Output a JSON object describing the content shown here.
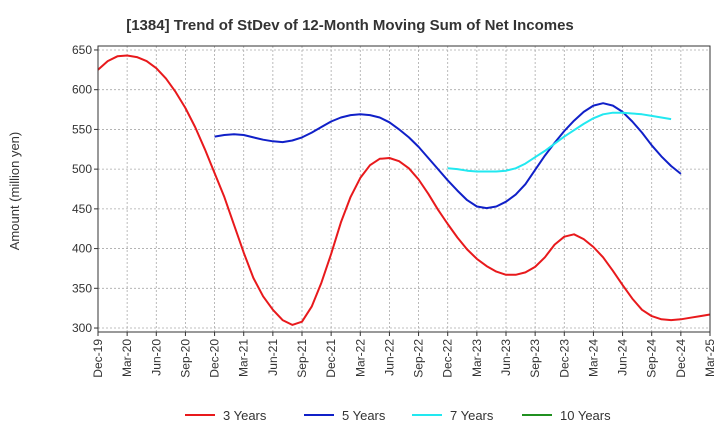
{
  "chart_data": {
    "type": "line",
    "title": "[1384]  Trend of StDev of 12-Month Moving Sum of Net Incomes",
    "ylabel": "Amount (million yen)",
    "xlabel": "",
    "ylim": [
      295,
      655
    ],
    "yticks": [
      300,
      350,
      400,
      450,
      500,
      550,
      600,
      650
    ],
    "x_tick_labels": [
      "Dec-19",
      "Mar-20",
      "Jun-20",
      "Sep-20",
      "Dec-20",
      "Mar-21",
      "Jun-21",
      "Sep-21",
      "Dec-21",
      "Mar-22",
      "Jun-22",
      "Sep-22",
      "Dec-22",
      "Mar-23",
      "Jun-23",
      "Sep-23",
      "Dec-23",
      "Mar-24",
      "Jun-24",
      "Sep-24",
      "Dec-24",
      "Mar-25"
    ],
    "x_unit": "month index (0 = Dec-19)",
    "grid": true,
    "legend_position": "bottom",
    "series": [
      {
        "name": "3 Years",
        "color": "#e8191c",
        "start": 0,
        "values": [
          625,
          636,
          642,
          643,
          641,
          636,
          627,
          614,
          597,
          577,
          553,
          525,
          495,
          465,
          430,
          395,
          363,
          340,
          323,
          310,
          304,
          308,
          327,
          357,
          393,
          433,
          465,
          489,
          505,
          513,
          514,
          510,
          501,
          487,
          469,
          449,
          431,
          414,
          399,
          387,
          378,
          371,
          367,
          367,
          370,
          377,
          389,
          405,
          415,
          418,
          412,
          402,
          389,
          372,
          354,
          337,
          323,
          315,
          311,
          310,
          311,
          313,
          315,
          317
        ]
      },
      {
        "name": "5 Years",
        "color": "#1020c8",
        "start": 12,
        "values": [
          541,
          543,
          544,
          543,
          540,
          537,
          535,
          534,
          536,
          540,
          546,
          553,
          560,
          565,
          568,
          569,
          568,
          565,
          559,
          550,
          540,
          528,
          514,
          500,
          486,
          473,
          461,
          453,
          451,
          453,
          459,
          468,
          481,
          499,
          517,
          533,
          548,
          561,
          572,
          580,
          583,
          580,
          572,
          560,
          546,
          530,
          516,
          504,
          494
        ]
      },
      {
        "name": "7 Years",
        "color": "#22e8f0",
        "start": 36,
        "values": [
          501,
          500,
          498,
          497,
          497,
          497,
          498,
          501,
          507,
          515,
          523,
          532,
          541,
          549,
          557,
          564,
          569,
          571,
          571,
          570,
          569,
          567,
          565,
          563
        ]
      },
      {
        "name": "10 Years",
        "color": "#209020",
        "start": 0,
        "values": []
      }
    ]
  }
}
